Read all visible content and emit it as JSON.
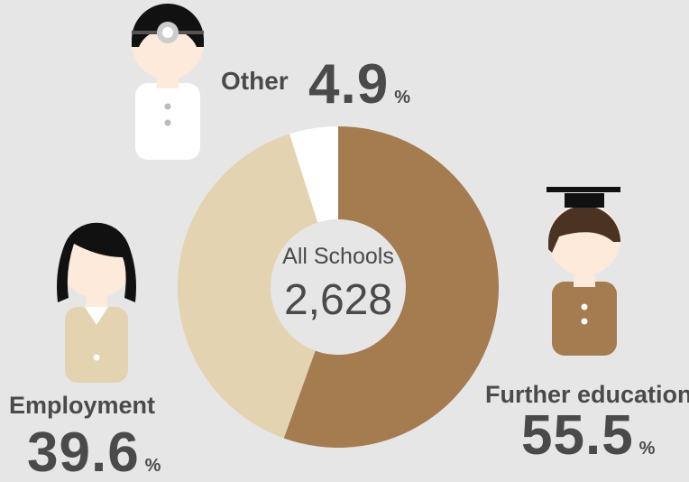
{
  "chart_data": {
    "type": "donut",
    "categories": [
      "Further education",
      "Employment",
      "Other"
    ],
    "values": [
      55.5,
      39.6,
      4.9
    ],
    "colors": [
      "#a57b50",
      "#e3d3b1",
      "#ffffff"
    ],
    "unit": "%",
    "center_title": "All Schools",
    "center_value": "2,628"
  }
}
